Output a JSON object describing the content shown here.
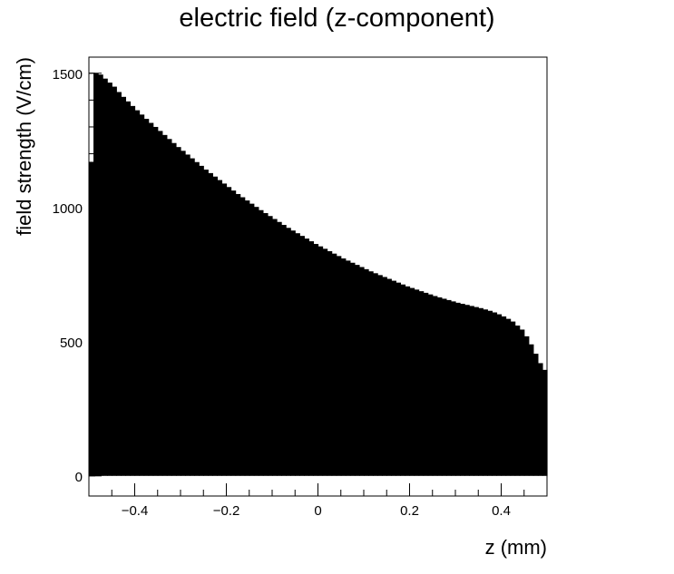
{
  "chart_data": {
    "type": "bar",
    "title": "electric field (z-component)",
    "xlabel": "z (mm)",
    "ylabel": "field strength (V/cm)",
    "xlim": [
      -0.5,
      0.5
    ],
    "ylim": [
      -75,
      1560
    ],
    "grid": false,
    "legend": "none",
    "bar_color": "#000000",
    "x_ticks": [
      {
        "value": -0.4,
        "label": "−0.4"
      },
      {
        "value": -0.2,
        "label": "−0.2"
      },
      {
        "value": 0,
        "label": "0"
      },
      {
        "value": 0.2,
        "label": "0.2"
      },
      {
        "value": 0.4,
        "label": "0.4"
      }
    ],
    "y_ticks": [
      {
        "value": 0,
        "label": "0"
      },
      {
        "value": 500,
        "label": "500"
      },
      {
        "value": 1000,
        "label": "1000"
      },
      {
        "value": 1500,
        "label": "1500"
      }
    ],
    "bin_width": 0.01,
    "bin_lower_edges": [
      -0.5,
      -0.49,
      -0.48,
      -0.47,
      -0.46,
      -0.45,
      -0.44,
      -0.43,
      -0.42,
      -0.41,
      -0.4,
      -0.39,
      -0.38,
      -0.37,
      -0.36,
      -0.35,
      -0.34,
      -0.33,
      -0.32,
      -0.31,
      -0.3,
      -0.29,
      -0.28,
      -0.27,
      -0.26,
      -0.25,
      -0.24,
      -0.23,
      -0.22,
      -0.21,
      -0.2,
      -0.19,
      -0.18,
      -0.17,
      -0.16,
      -0.15,
      -0.14,
      -0.13,
      -0.12,
      -0.11,
      -0.1,
      -0.09,
      -0.08,
      -0.07,
      -0.06,
      -0.05,
      -0.04,
      -0.03,
      -0.02,
      -0.01,
      0.0,
      0.01,
      0.02,
      0.03,
      0.04,
      0.05,
      0.06,
      0.07,
      0.08,
      0.09,
      0.1,
      0.11,
      0.12,
      0.13,
      0.14,
      0.15,
      0.16,
      0.17,
      0.18,
      0.19,
      0.2,
      0.21,
      0.22,
      0.23,
      0.24,
      0.25,
      0.26,
      0.27,
      0.28,
      0.29,
      0.3,
      0.31,
      0.32,
      0.33,
      0.34,
      0.35,
      0.36,
      0.37,
      0.38,
      0.39,
      0.4,
      0.41,
      0.42,
      0.43,
      0.44,
      0.45,
      0.46,
      0.47,
      0.48,
      0.49
    ],
    "values": [
      1170,
      1500,
      1495,
      1480,
      1465,
      1450,
      1430,
      1412,
      1395,
      1378,
      1362,
      1346,
      1330,
      1315,
      1300,
      1285,
      1270,
      1255,
      1240,
      1225,
      1211,
      1197,
      1183,
      1169,
      1155,
      1141,
      1128,
      1115,
      1102,
      1089,
      1076,
      1063,
      1050,
      1038,
      1026,
      1014,
      1002,
      990,
      979,
      968,
      957,
      946,
      935,
      924,
      914,
      904,
      894,
      884,
      874,
      864,
      855,
      846,
      837,
      828,
      819,
      810,
      802,
      794,
      786,
      778,
      770,
      762,
      755,
      748,
      741,
      734,
      727,
      720,
      713,
      706,
      700,
      694,
      688,
      682,
      676,
      670,
      665,
      660,
      655,
      650,
      645,
      641,
      637,
      633,
      629,
      625,
      620,
      615,
      609,
      602,
      594,
      585,
      575,
      560,
      545,
      520,
      490,
      455,
      420,
      395
    ]
  }
}
